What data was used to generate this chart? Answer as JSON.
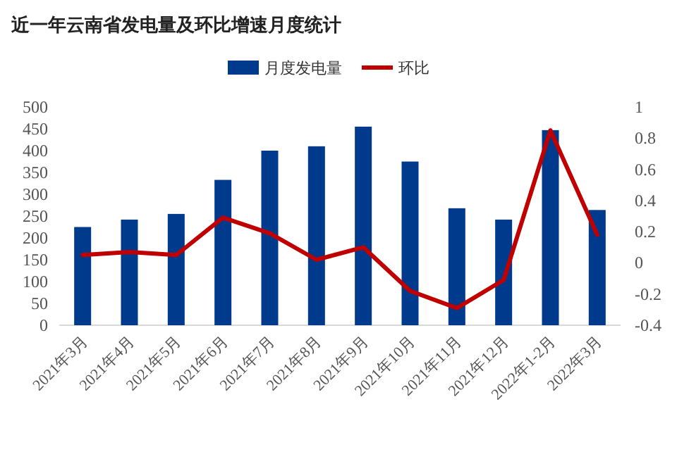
{
  "chart_data": {
    "type": "bar",
    "title": "近一年云南省发电量及环比增速月度统计",
    "categories": [
      "2021年3月",
      "2021年4月",
      "2021年5月",
      "2021年6月",
      "2021年7月",
      "2021年8月",
      "2021年9月",
      "2021年10月",
      "2021年11月",
      "2021年12月",
      "2022年1-2月",
      "2022年3月"
    ],
    "series": [
      {
        "name": "月度发电量",
        "color": "#003a8c",
        "values": [
          225,
          242,
          255,
          333,
          400,
          410,
          455,
          375,
          268,
          242,
          447,
          264
        ]
      },
      {
        "name": "环比",
        "type": "line",
        "axis": "y2",
        "color": "#c00000",
        "values": [
          0.05,
          0.07,
          0.05,
          0.29,
          0.19,
          0.02,
          0.1,
          -0.18,
          -0.29,
          -0.11,
          0.85,
          0.18
        ]
      }
    ],
    "ylim": [
      0,
      500
    ],
    "yticks": [
      0,
      50,
      100,
      150,
      200,
      250,
      300,
      350,
      400,
      450,
      500
    ],
    "y2lim": [
      -0.4,
      1
    ],
    "y2ticks": [
      -0.4,
      -0.2,
      0,
      0.2,
      0.4,
      0.6,
      0.8,
      1
    ],
    "legend": "top",
    "grid": false,
    "marker": "none",
    "line_style": "solid"
  }
}
